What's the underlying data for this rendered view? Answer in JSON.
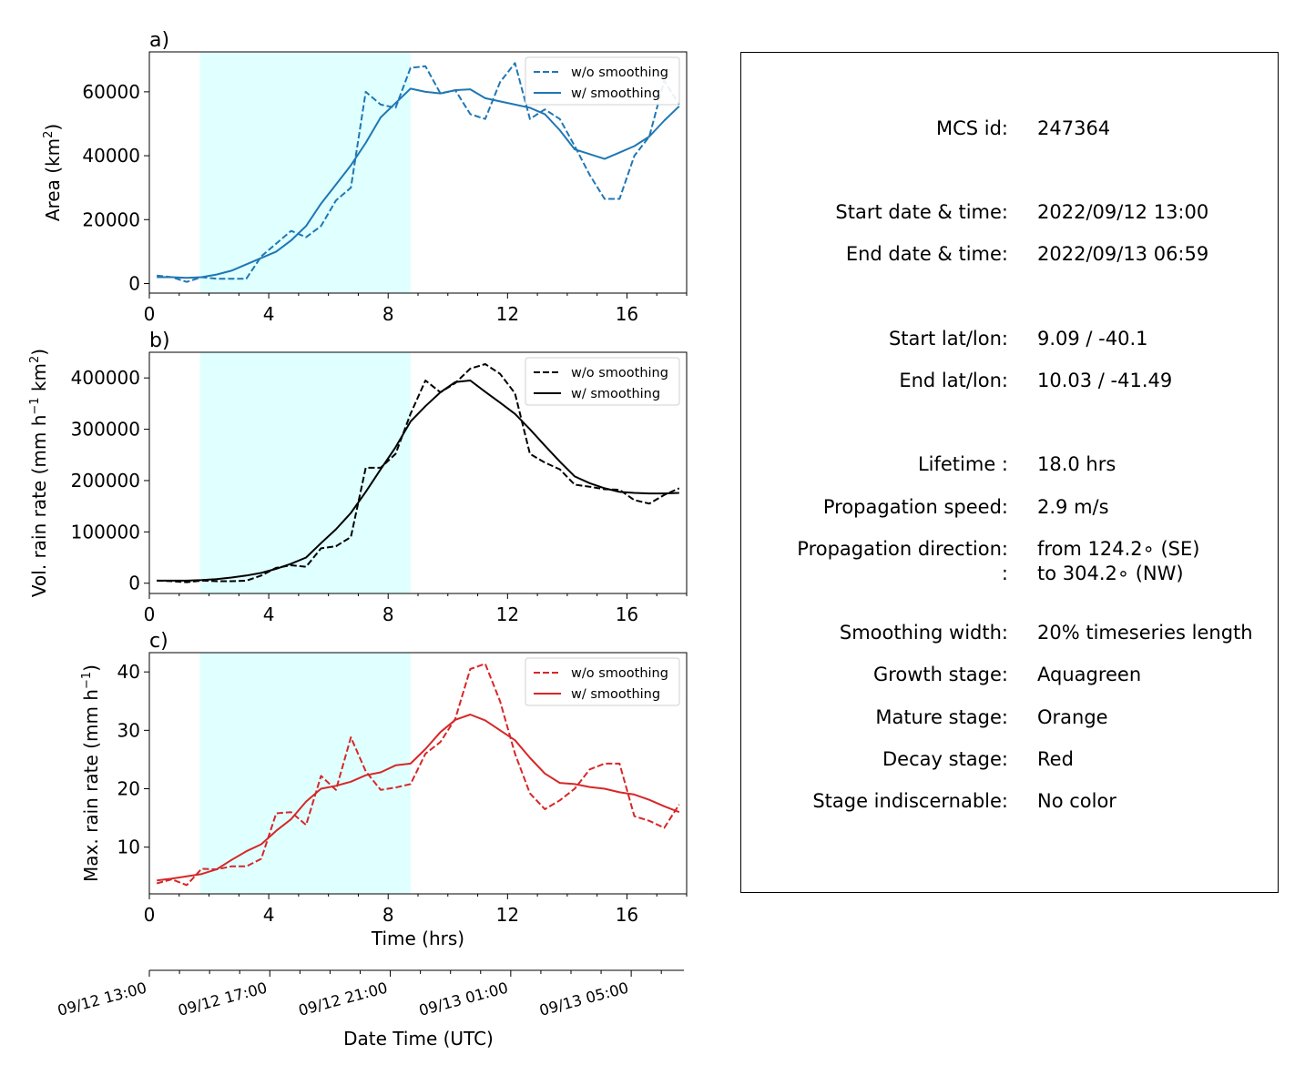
{
  "chart_data": [
    {
      "type": "line",
      "panel_label": "a)",
      "ylabel": "Area  (km²)",
      "ylabel_main": "Area  (km",
      "ylabel_sup": "2",
      "ylabel_end": ")",
      "xlim": [
        0,
        18
      ],
      "ylim": [
        -3000,
        72500
      ],
      "yticks": [
        0,
        20000,
        40000,
        60000
      ],
      "xticks": [
        0,
        4,
        8,
        12,
        16
      ],
      "growth_shading_x": [
        1.7,
        8.75
      ],
      "series": [
        {
          "name": "w/o smoothing",
          "style": "dashed",
          "color": "#1f77b4",
          "x": [
            0.25,
            0.75,
            1.25,
            1.75,
            2.25,
            2.75,
            3.25,
            3.75,
            4.25,
            4.75,
            5.25,
            5.75,
            6.25,
            6.75,
            7.25,
            7.75,
            8.25,
            8.75,
            9.25,
            9.75,
            10.25,
            10.75,
            11.25,
            11.75,
            12.25,
            12.75,
            13.25,
            13.75,
            14.25,
            14.75,
            15.25,
            15.75,
            16.25,
            16.75,
            17.25,
            17.75
          ],
          "y": [
            2500,
            2000,
            500,
            2000,
            1500,
            1500,
            1500,
            8500,
            12500,
            16500,
            14500,
            18000,
            26000,
            30000,
            60000,
            56000,
            55000,
            67500,
            68000,
            59500,
            60500,
            53000,
            51500,
            63000,
            69000,
            51500,
            54500,
            51500,
            43000,
            34000,
            26500,
            26500,
            40000,
            46000,
            63500,
            56000
          ]
        },
        {
          "name": "w/ smoothing",
          "style": "solid",
          "color": "#1f77b4",
          "x": [
            0.25,
            0.75,
            1.25,
            1.75,
            2.25,
            2.75,
            3.25,
            3.75,
            4.25,
            4.75,
            5.25,
            5.75,
            6.25,
            6.75,
            7.25,
            7.75,
            8.25,
            8.75,
            9.25,
            9.75,
            10.25,
            10.75,
            11.25,
            11.75,
            12.25,
            12.75,
            13.25,
            13.75,
            14.25,
            14.75,
            15.25,
            15.75,
            16.25,
            16.75,
            17.25,
            17.75
          ],
          "y": [
            2000,
            2000,
            1800,
            2000,
            2800,
            4000,
            6000,
            8000,
            10000,
            13500,
            18000,
            25000,
            31000,
            37000,
            44000,
            52000,
            56500,
            61000,
            60000,
            59500,
            60500,
            60800,
            58000,
            57000,
            56000,
            55000,
            53000,
            48000,
            42000,
            40500,
            39000,
            41000,
            43000,
            46000,
            51000,
            55500
          ]
        }
      ]
    },
    {
      "type": "line",
      "panel_label": "b)",
      "ylabel": "Vol. rain rate (mm h⁻¹ km²)",
      "ylabel_main": "Vol. rain rate (mm h",
      "ylabel_sup1": "−1",
      "ylabel_mid": " km",
      "ylabel_sup2": "2",
      "ylabel_end": ")",
      "xlim": [
        0,
        18
      ],
      "ylim": [
        -20000,
        450000
      ],
      "yticks": [
        0,
        100000,
        200000,
        300000,
        400000
      ],
      "xticks": [
        0,
        4,
        8,
        12,
        16
      ],
      "growth_shading_x": [
        1.7,
        8.75
      ],
      "series": [
        {
          "name": "w/o smoothing",
          "style": "dashed",
          "color": "#000000",
          "x": [
            0.25,
            0.75,
            1.25,
            1.75,
            2.25,
            2.75,
            3.25,
            3.75,
            4.25,
            4.75,
            5.25,
            5.75,
            6.25,
            6.75,
            7.25,
            7.75,
            8.25,
            8.75,
            9.25,
            9.75,
            10.25,
            10.75,
            11.25,
            11.75,
            12.25,
            12.75,
            13.25,
            13.75,
            14.25,
            14.75,
            15.25,
            15.75,
            16.25,
            16.75,
            17.25,
            17.75
          ],
          "y": [
            5000,
            4000,
            2000,
            5000,
            4000,
            4000,
            5000,
            15000,
            30000,
            35000,
            32000,
            68000,
            72000,
            90000,
            225000,
            225000,
            252000,
            330000,
            395000,
            372000,
            390000,
            418000,
            427000,
            408000,
            370000,
            252000,
            235000,
            222000,
            192000,
            188000,
            183000,
            182000,
            162000,
            155000,
            172000,
            185000
          ]
        },
        {
          "name": "w/ smoothing",
          "style": "solid",
          "color": "#000000",
          "x": [
            0.25,
            0.75,
            1.25,
            1.75,
            2.25,
            2.75,
            3.25,
            3.75,
            4.25,
            4.75,
            5.25,
            5.75,
            6.25,
            6.75,
            7.25,
            7.75,
            8.25,
            8.75,
            9.25,
            9.75,
            10.25,
            10.75,
            11.25,
            11.75,
            12.25,
            12.75,
            13.25,
            13.75,
            14.25,
            14.75,
            15.25,
            15.75,
            16.25,
            16.75,
            17.25,
            17.75
          ],
          "y": [
            5000,
            5000,
            5000,
            6000,
            8000,
            11000,
            15000,
            20000,
            28000,
            38000,
            50000,
            78000,
            105000,
            137000,
            178000,
            222000,
            265000,
            315000,
            345000,
            372000,
            392000,
            395000,
            373000,
            352000,
            330000,
            300000,
            268000,
            237000,
            208000,
            195000,
            185000,
            178000,
            176000,
            175000,
            175000,
            176000
          ]
        }
      ]
    },
    {
      "type": "line",
      "panel_label": "c)",
      "ylabel": "Max. rain rate  (mm h⁻¹)",
      "ylabel_main": "Max. rain rate  (mm h",
      "ylabel_sup": "−1",
      "ylabel_end": ")",
      "xlabel": "Time (hrs)",
      "xlim": [
        0,
        18
      ],
      "ylim": [
        2,
        43.3
      ],
      "yticks": [
        10,
        20,
        30,
        40
      ],
      "xticks": [
        0,
        4,
        8,
        12,
        16
      ],
      "growth_shading_x": [
        1.7,
        8.75
      ],
      "series": [
        {
          "name": "w/o smoothing",
          "style": "dashed",
          "color": "#d62728",
          "x": [
            0.25,
            0.75,
            1.25,
            1.75,
            2.25,
            2.75,
            3.25,
            3.75,
            4.25,
            4.75,
            5.25,
            5.75,
            6.25,
            6.75,
            7.25,
            7.75,
            8.25,
            8.75,
            9.25,
            9.75,
            10.25,
            10.75,
            11.25,
            11.75,
            12.25,
            12.75,
            13.25,
            13.75,
            14.25,
            14.75,
            15.25,
            15.75,
            16.25,
            16.75,
            17.25,
            17.75
          ],
          "y": [
            3.8,
            4.5,
            3.5,
            6.3,
            6.2,
            6.7,
            6.7,
            8.0,
            15.8,
            16.0,
            13.8,
            22.2,
            19.8,
            28.8,
            23.0,
            19.8,
            20.2,
            20.8,
            26.0,
            28.0,
            32.0,
            40.5,
            41.4,
            35.0,
            26.0,
            19.2,
            16.5,
            18.0,
            20.0,
            23.3,
            24.3,
            24.3,
            15.3,
            14.5,
            13.3,
            17.3
          ]
        },
        {
          "name": "w/ smoothing",
          "style": "solid",
          "color": "#d62728",
          "x": [
            0.25,
            0.75,
            1.25,
            1.75,
            2.25,
            2.75,
            3.25,
            3.75,
            4.25,
            4.75,
            5.25,
            5.75,
            6.25,
            6.75,
            7.25,
            7.75,
            8.25,
            8.75,
            9.25,
            9.75,
            10.25,
            10.75,
            11.25,
            11.75,
            12.25,
            12.75,
            13.25,
            13.75,
            14.25,
            14.75,
            15.25,
            15.75,
            16.25,
            16.75,
            17.25,
            17.75
          ],
          "y": [
            4.3,
            4.6,
            5.0,
            5.4,
            6.2,
            7.8,
            9.3,
            10.5,
            12.8,
            14.8,
            17.8,
            20.0,
            20.5,
            21.2,
            22.3,
            22.8,
            24.0,
            24.3,
            26.8,
            29.7,
            31.8,
            32.7,
            31.7,
            30.0,
            28.3,
            25.3,
            22.6,
            21.0,
            20.8,
            20.3,
            20.0,
            19.4,
            19.0,
            18.1,
            17.0,
            16.0
          ]
        }
      ]
    },
    {
      "type": "axis",
      "xlabel": "Date Time (UTC)",
      "tick_labels": [
        "09/12 13:00",
        "09/12 17:00",
        "09/12 21:00",
        "09/13 01:00",
        "09/13 05:00"
      ],
      "major_tick_hours": [
        0,
        4,
        8,
        12,
        16
      ],
      "xlim": [
        0,
        17.75
      ]
    }
  ],
  "legend": {
    "dashed_label": "w/o smoothing",
    "solid_label": "w/ smoothing"
  },
  "colors": {
    "growth_shading": "#e0ffff"
  },
  "info": [
    {
      "label": "MCS id:",
      "value": "247364"
    },
    {
      "label": "Start date & time:",
      "value": "2022/09/12 13:00"
    },
    {
      "label": "End date & time:",
      "value": "2022/09/13 06:59"
    },
    {
      "label": "Start lat/lon:",
      "value": "9.09 / -40.1"
    },
    {
      "label": "End lat/lon:",
      "value": "10.03 / -41.49"
    },
    {
      "label": "Lifetime :",
      "value": "18.0 hrs"
    },
    {
      "label": "Propagation speed:",
      "value": "2.9 m/s"
    },
    {
      "label": "Propagation direction:",
      "value": "from 124.2∘ (SE)"
    },
    {
      "label": ":",
      "value": "to   304.2∘ (NW)"
    },
    {
      "label": "Smoothing width:",
      "value": "20% timeseries length"
    },
    {
      "label": "Growth stage:",
      "value": "Aquagreen"
    },
    {
      "label": "Mature stage:",
      "value": "Orange"
    },
    {
      "label": "Decay stage:",
      "value": "Red"
    },
    {
      "label": "Stage indiscernable:",
      "value": "No color"
    }
  ]
}
